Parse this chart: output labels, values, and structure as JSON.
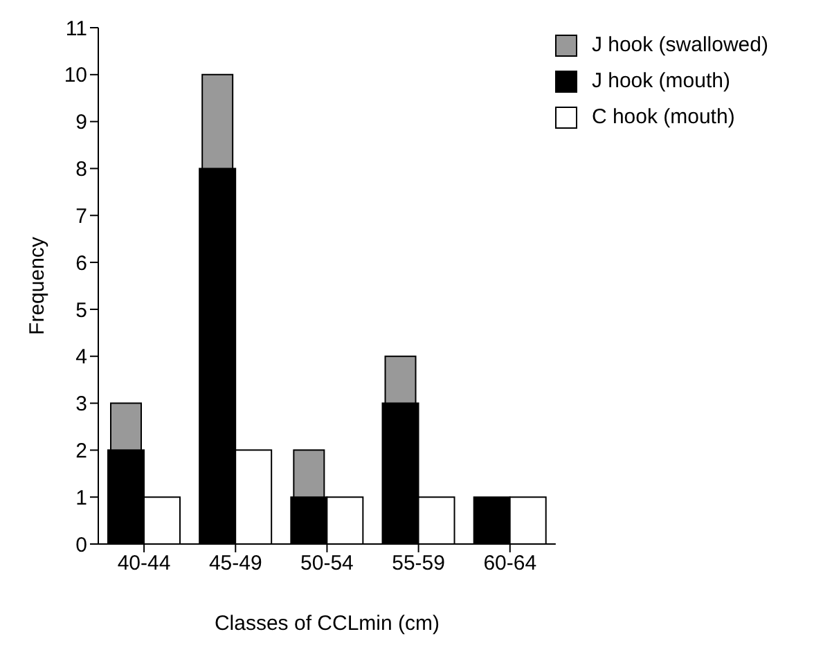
{
  "chart_data": {
    "type": "bar",
    "xlabel": "Classes of CCLmin (cm)",
    "ylabel": "Frequency",
    "categories": [
      "40-44",
      "45-49",
      "50-54",
      "55-59",
      "60-64"
    ],
    "series": [
      {
        "name": "J hook (mouth)",
        "color": "#000000",
        "values": [
          2,
          8,
          1,
          3,
          1
        ]
      },
      {
        "name": "J hook (swallowed)",
        "color": "#999999",
        "values": [
          1,
          2,
          1,
          1,
          null
        ],
        "base": [
          2,
          8,
          1,
          3,
          null
        ]
      },
      {
        "name": "C hook (mouth)",
        "color": "#ffffff",
        "values": [
          1,
          2,
          1,
          1,
          1
        ]
      }
    ],
    "ylim": [
      0,
      11
    ],
    "yticks": [
      0,
      1,
      2,
      3,
      4,
      5,
      6,
      7,
      8,
      9,
      10,
      11
    ],
    "grid": false,
    "legend": "top right"
  }
}
